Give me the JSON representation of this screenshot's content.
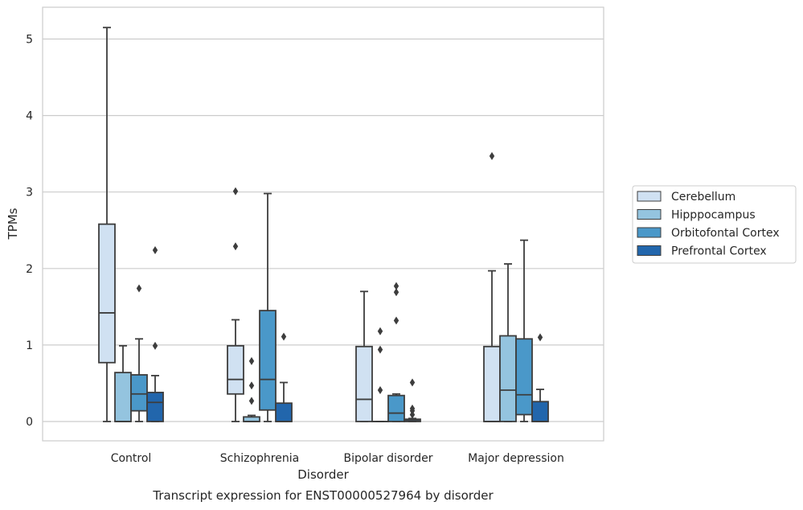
{
  "caption": "Transcript expression for ENST00000527964 by disorder",
  "chart_data": {
    "type": "box",
    "xlabel": "Disorder",
    "ylabel": "TPMs",
    "ylim": [
      -0.25,
      5.4
    ],
    "yticks": [
      0,
      1,
      2,
      3,
      4,
      5
    ],
    "grid": "horizontal",
    "legend_position": "right",
    "categories": [
      "Control",
      "Schizophrenia",
      "Bipolar disorder",
      "Major depression"
    ],
    "series": [
      {
        "name": "Cerebellum",
        "color": "#d0e1f2",
        "boxes": [
          {
            "whislo": 0,
            "q1": 0.77,
            "med": 1.42,
            "q3": 2.58,
            "whishi": 5.15,
            "fliers": []
          },
          {
            "whislo": 0,
            "q1": 0.36,
            "med": 0.55,
            "q3": 0.99,
            "whishi": 1.33,
            "fliers": [
              2.29,
              3.01
            ]
          },
          {
            "whislo": 0,
            "q1": 0,
            "med": 0.29,
            "q3": 0.98,
            "whishi": 1.7,
            "fliers": []
          },
          {
            "whislo": 0,
            "q1": 0,
            "med": 0,
            "q3": 0.98,
            "whishi": 1.97,
            "fliers": [
              3.47
            ]
          }
        ]
      },
      {
        "name": "Hipppocampus",
        "color": "#94c4df",
        "boxes": [
          {
            "whislo": 0,
            "q1": 0,
            "med": 0,
            "q3": 0.64,
            "whishi": 0.99,
            "fliers": []
          },
          {
            "whislo": 0,
            "q1": 0,
            "med": 0,
            "q3": 0.06,
            "whishi": 0.08,
            "fliers": [
              0.27,
              0.47,
              0.79
            ]
          },
          {
            "whislo": 0,
            "q1": 0,
            "med": 0,
            "q3": 0,
            "whishi": 0,
            "fliers": [
              0.41,
              0.94,
              1.18
            ]
          },
          {
            "whislo": 0,
            "q1": 0,
            "med": 0.41,
            "q3": 1.12,
            "whishi": 2.06,
            "fliers": []
          }
        ]
      },
      {
        "name": "Orbitofontal Cortex",
        "color": "#4a98c9",
        "boxes": [
          {
            "whislo": 0,
            "q1": 0.14,
            "med": 0.36,
            "q3": 0.61,
            "whishi": 1.08,
            "fliers": [
              1.74
            ]
          },
          {
            "whislo": 0,
            "q1": 0.15,
            "med": 0.55,
            "q3": 1.45,
            "whishi": 2.98,
            "fliers": []
          },
          {
            "whislo": 0,
            "q1": 0,
            "med": 0.11,
            "q3": 0.34,
            "whishi": 0.36,
            "fliers": [
              1.32,
              1.69,
              1.77
            ]
          },
          {
            "whislo": 0,
            "q1": 0.09,
            "med": 0.35,
            "q3": 1.08,
            "whishi": 2.37,
            "fliers": []
          }
        ]
      },
      {
        "name": "Prefrontal Cortex",
        "color": "#2266ac",
        "boxes": [
          {
            "whislo": 0,
            "q1": 0,
            "med": 0.25,
            "q3": 0.38,
            "whishi": 0.6,
            "fliers": [
              0.99,
              2.24
            ]
          },
          {
            "whislo": 0,
            "q1": 0,
            "med": 0,
            "q3": 0.24,
            "whishi": 0.51,
            "fliers": [
              1.11
            ]
          },
          {
            "whislo": 0,
            "q1": 0,
            "med": 0.01,
            "q3": 0.03,
            "whishi": 0.04,
            "fliers": [
              0.09,
              0.14,
              0.17,
              0.51
            ]
          },
          {
            "whislo": 0,
            "q1": 0,
            "med": 0,
            "q3": 0.26,
            "whishi": 0.42,
            "fliers": [
              1.1
            ]
          }
        ]
      }
    ]
  }
}
